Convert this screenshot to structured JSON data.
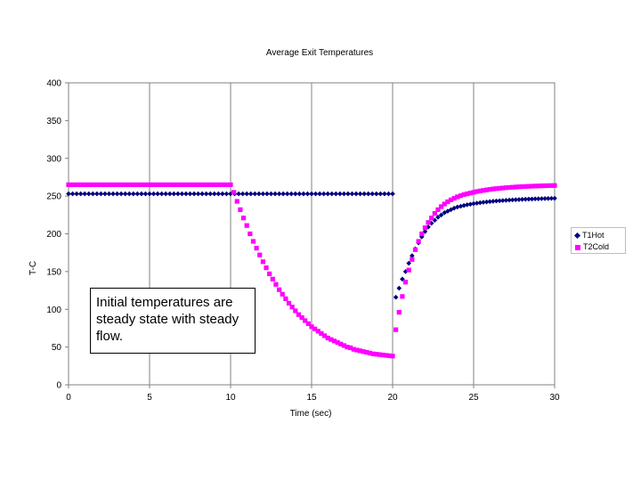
{
  "chart_data": {
    "type": "scatter",
    "title": "Average Exit Temperatures",
    "xlabel": "Time (sec)",
    "ylabel": "T-C",
    "xlim": [
      0,
      30
    ],
    "ylim": [
      0,
      400
    ],
    "x_ticks": [
      "0",
      "5",
      "10",
      "15",
      "20",
      "25",
      "30"
    ],
    "y_ticks": [
      "0",
      "50",
      "100",
      "150",
      "200",
      "250",
      "300",
      "350",
      "400"
    ],
    "grid": "vertical",
    "legend_position": "right",
    "series": [
      {
        "name": "T1Hot",
        "color": "#000080",
        "marker": "diamond",
        "points": [
          [
            0.0,
            253
          ],
          [
            0.25,
            253
          ],
          [
            0.5,
            253
          ],
          [
            0.75,
            253
          ],
          [
            1.0,
            253
          ],
          [
            1.25,
            253
          ],
          [
            1.5,
            253
          ],
          [
            1.75,
            253
          ],
          [
            2.0,
            253
          ],
          [
            2.25,
            253
          ],
          [
            2.5,
            253
          ],
          [
            2.75,
            253
          ],
          [
            3.0,
            253
          ],
          [
            3.25,
            253
          ],
          [
            3.5,
            253
          ],
          [
            3.75,
            253
          ],
          [
            4.0,
            253
          ],
          [
            4.25,
            253
          ],
          [
            4.5,
            253
          ],
          [
            4.75,
            253
          ],
          [
            5.0,
            253
          ],
          [
            5.25,
            253
          ],
          [
            5.5,
            253
          ],
          [
            5.75,
            253
          ],
          [
            6.0,
            253
          ],
          [
            6.25,
            253
          ],
          [
            6.5,
            253
          ],
          [
            6.75,
            253
          ],
          [
            7.0,
            253
          ],
          [
            7.25,
            253
          ],
          [
            7.5,
            253
          ],
          [
            7.75,
            253
          ],
          [
            8.0,
            253
          ],
          [
            8.25,
            253
          ],
          [
            8.5,
            253
          ],
          [
            8.75,
            253
          ],
          [
            9.0,
            253
          ],
          [
            9.25,
            253
          ],
          [
            9.5,
            253
          ],
          [
            9.75,
            253
          ],
          [
            10.0,
            253
          ],
          [
            10.25,
            253
          ],
          [
            10.5,
            253
          ],
          [
            10.75,
            253
          ],
          [
            11.0,
            253
          ],
          [
            11.25,
            253
          ],
          [
            11.5,
            253
          ],
          [
            11.75,
            253
          ],
          [
            12.0,
            253
          ],
          [
            12.25,
            253
          ],
          [
            12.5,
            253
          ],
          [
            12.75,
            253
          ],
          [
            13.0,
            253
          ],
          [
            13.25,
            253
          ],
          [
            13.5,
            253
          ],
          [
            13.75,
            253
          ],
          [
            14.0,
            253
          ],
          [
            14.25,
            253
          ],
          [
            14.5,
            253
          ],
          [
            14.75,
            253
          ],
          [
            15.0,
            253
          ],
          [
            15.25,
            253
          ],
          [
            15.5,
            253
          ],
          [
            15.75,
            253
          ],
          [
            16.0,
            253
          ],
          [
            16.25,
            253
          ],
          [
            16.5,
            253
          ],
          [
            16.75,
            253
          ],
          [
            17.0,
            253
          ],
          [
            17.25,
            253
          ],
          [
            17.5,
            253
          ],
          [
            17.75,
            253
          ],
          [
            18.0,
            253
          ],
          [
            18.25,
            253
          ],
          [
            18.5,
            253
          ],
          [
            18.75,
            253
          ],
          [
            19.0,
            253
          ],
          [
            19.25,
            253
          ],
          [
            19.5,
            253
          ],
          [
            19.75,
            253
          ],
          [
            20.0,
            253
          ],
          [
            20.2,
            116
          ],
          [
            20.4,
            128
          ],
          [
            20.6,
            140
          ],
          [
            20.8,
            150
          ],
          [
            21.0,
            161
          ],
          [
            21.2,
            171
          ],
          [
            21.4,
            180
          ],
          [
            21.6,
            188
          ],
          [
            21.8,
            196
          ],
          [
            22.0,
            203
          ],
          [
            22.2,
            209
          ],
          [
            22.4,
            214
          ],
          [
            22.6,
            218
          ],
          [
            22.8,
            222
          ],
          [
            23.0,
            225
          ],
          [
            23.2,
            228
          ],
          [
            23.4,
            230
          ],
          [
            23.6,
            232
          ],
          [
            23.8,
            234
          ],
          [
            24.0,
            235.5
          ],
          [
            24.2,
            236.5
          ],
          [
            24.4,
            237.5
          ],
          [
            24.6,
            238.5
          ],
          [
            24.8,
            239.2
          ],
          [
            25.0,
            240
          ],
          [
            25.2,
            240.6
          ],
          [
            25.4,
            241.2
          ],
          [
            25.6,
            241.8
          ],
          [
            25.8,
            242.2
          ],
          [
            26.0,
            242.7
          ],
          [
            26.2,
            243.1
          ],
          [
            26.4,
            243.5
          ],
          [
            26.6,
            243.8
          ],
          [
            26.8,
            244.1
          ],
          [
            27.0,
            244.4
          ],
          [
            27.2,
            244.7
          ],
          [
            27.4,
            245
          ],
          [
            27.6,
            245.2
          ],
          [
            27.8,
            245.4
          ],
          [
            28.0,
            245.6
          ],
          [
            28.2,
            245.8
          ],
          [
            28.4,
            246
          ],
          [
            28.6,
            246.1
          ],
          [
            28.8,
            246.3
          ],
          [
            29.0,
            246.4
          ],
          [
            29.2,
            246.6
          ],
          [
            29.4,
            246.7
          ],
          [
            29.6,
            246.8
          ],
          [
            29.8,
            246.9
          ],
          [
            30.0,
            247
          ]
        ]
      },
      {
        "name": "T2Cold",
        "color": "#ff00ff",
        "marker": "square",
        "points": [
          [
            0.0,
            265
          ],
          [
            0.25,
            265
          ],
          [
            0.5,
            265
          ],
          [
            0.75,
            265
          ],
          [
            1.0,
            265
          ],
          [
            1.25,
            265
          ],
          [
            1.5,
            265
          ],
          [
            1.75,
            265
          ],
          [
            2.0,
            265
          ],
          [
            2.25,
            265
          ],
          [
            2.5,
            265
          ],
          [
            2.75,
            265
          ],
          [
            3.0,
            265
          ],
          [
            3.25,
            265
          ],
          [
            3.5,
            265
          ],
          [
            3.75,
            265
          ],
          [
            4.0,
            265
          ],
          [
            4.25,
            265
          ],
          [
            4.5,
            265
          ],
          [
            4.75,
            265
          ],
          [
            5.0,
            265
          ],
          [
            5.25,
            265
          ],
          [
            5.5,
            265
          ],
          [
            5.75,
            265
          ],
          [
            6.0,
            265
          ],
          [
            6.25,
            265
          ],
          [
            6.5,
            265
          ],
          [
            6.75,
            265
          ],
          [
            7.0,
            265
          ],
          [
            7.25,
            265
          ],
          [
            7.5,
            265
          ],
          [
            7.75,
            265
          ],
          [
            8.0,
            265
          ],
          [
            8.25,
            265
          ],
          [
            8.5,
            265
          ],
          [
            8.75,
            265
          ],
          [
            9.0,
            265
          ],
          [
            9.25,
            265
          ],
          [
            9.5,
            265
          ],
          [
            9.75,
            265
          ],
          [
            10.0,
            265
          ],
          [
            10.2,
            255
          ],
          [
            10.4,
            243
          ],
          [
            10.6,
            232
          ],
          [
            10.8,
            221
          ],
          [
            11.0,
            211
          ],
          [
            11.2,
            200
          ],
          [
            11.4,
            190
          ],
          [
            11.6,
            181
          ],
          [
            11.8,
            172
          ],
          [
            12.0,
            163
          ],
          [
            12.2,
            155
          ],
          [
            12.4,
            147
          ],
          [
            12.6,
            140
          ],
          [
            12.8,
            133
          ],
          [
            13.0,
            126
          ],
          [
            13.2,
            120
          ],
          [
            13.4,
            114
          ],
          [
            13.6,
            108
          ],
          [
            13.8,
            103
          ],
          [
            14.0,
            98
          ],
          [
            14.2,
            93
          ],
          [
            14.4,
            89
          ],
          [
            14.6,
            85
          ],
          [
            14.8,
            81
          ],
          [
            15.0,
            77
          ],
          [
            15.2,
            74
          ],
          [
            15.4,
            71
          ],
          [
            15.6,
            68
          ],
          [
            15.8,
            65
          ],
          [
            16.0,
            62
          ],
          [
            16.2,
            60
          ],
          [
            16.4,
            58
          ],
          [
            16.6,
            56
          ],
          [
            16.8,
            54
          ],
          [
            17.0,
            52
          ],
          [
            17.2,
            50
          ],
          [
            17.4,
            49
          ],
          [
            17.6,
            47
          ],
          [
            17.8,
            46
          ],
          [
            18.0,
            45
          ],
          [
            18.2,
            44
          ],
          [
            18.4,
            43
          ],
          [
            18.6,
            42
          ],
          [
            18.8,
            41
          ],
          [
            19.0,
            40.5
          ],
          [
            19.2,
            40
          ],
          [
            19.4,
            39.5
          ],
          [
            19.6,
            39
          ],
          [
            19.8,
            38.5
          ],
          [
            20.0,
            38
          ],
          [
            20.2,
            73
          ],
          [
            20.4,
            96
          ],
          [
            20.6,
            117
          ],
          [
            20.8,
            136
          ],
          [
            21.0,
            152
          ],
          [
            21.2,
            166
          ],
          [
            21.4,
            179
          ],
          [
            21.6,
            190
          ],
          [
            21.8,
            200
          ],
          [
            22.0,
            208
          ],
          [
            22.2,
            215
          ],
          [
            22.4,
            221
          ],
          [
            22.6,
            227
          ],
          [
            22.8,
            232
          ],
          [
            23.0,
            236
          ],
          [
            23.2,
            239.5
          ],
          [
            23.4,
            242.5
          ],
          [
            23.6,
            245
          ],
          [
            23.8,
            247
          ],
          [
            24.0,
            249
          ],
          [
            24.2,
            250.5
          ],
          [
            24.4,
            252
          ],
          [
            24.6,
            253
          ],
          [
            24.8,
            254
          ],
          [
            25.0,
            255
          ],
          [
            25.2,
            256
          ],
          [
            25.4,
            256.8
          ],
          [
            25.6,
            257.5
          ],
          [
            25.8,
            258.2
          ],
          [
            26.0,
            258.8
          ],
          [
            26.2,
            259.4
          ],
          [
            26.4,
            259.9
          ],
          [
            26.6,
            260.3
          ],
          [
            26.8,
            260.7
          ],
          [
            27.0,
            261.1
          ],
          [
            27.2,
            261.4
          ],
          [
            27.4,
            261.7
          ],
          [
            27.6,
            262
          ],
          [
            27.8,
            262.3
          ],
          [
            28.0,
            262.5
          ],
          [
            28.2,
            262.7
          ],
          [
            28.4,
            262.9
          ],
          [
            28.6,
            263.1
          ],
          [
            28.8,
            263.3
          ],
          [
            29.0,
            263.4
          ],
          [
            29.2,
            263.6
          ],
          [
            29.4,
            263.7
          ],
          [
            29.6,
            263.8
          ],
          [
            29.8,
            263.9
          ],
          [
            30.0,
            264
          ]
        ]
      }
    ],
    "annotations": [
      {
        "text": "Initial temperatures are steady state with steady flow."
      }
    ]
  }
}
